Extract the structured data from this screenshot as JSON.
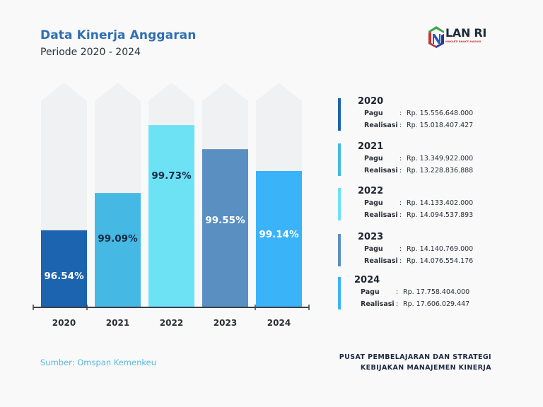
{
  "header": {
    "title": "Data Kinerja Anggaran",
    "subtitle": "Periode 2020 - 2024"
  },
  "logo": {
    "name": "LAN RI",
    "tagline": "MAKARTI BHAKTI NAGARI"
  },
  "chart_data": {
    "type": "bar",
    "title": "Data Kinerja Anggaran",
    "subtitle": "Periode 2020 - 2024",
    "xlabel": "",
    "ylabel": "",
    "grid": false,
    "categories": [
      "2020",
      "2021",
      "2022",
      "2023",
      "2024"
    ],
    "values": [
      96.54,
      99.09,
      99.73,
      99.55,
      99.14
    ],
    "value_unit": "%",
    "data_labels": [
      "96.54%",
      "99.09%",
      "99.73%",
      "99.55%",
      "99.14%"
    ],
    "fill_fraction": [
      0.343,
      0.509,
      0.811,
      0.704,
      0.607
    ],
    "colors": [
      "#1c63b0",
      "#45b9e3",
      "#6de2f5",
      "#5a8fc2",
      "#3ab3f9"
    ],
    "label_colors": [
      "#ffffff",
      "#1b2a44",
      "#1b2a44",
      "#ffffff",
      "#ffffff"
    ],
    "background_color": "#f0f1f3",
    "axis_color": "#3a3f4a"
  },
  "legend": [
    {
      "year": "2020",
      "color": "#1c63b0",
      "pagu_label": "Pagu",
      "pagu": "Rp. 15.556.648.000",
      "realisasi_label": "Realisasi",
      "realisasi": "Rp. 15.018.407.427"
    },
    {
      "year": "2021",
      "color": "#45b9e3",
      "pagu_label": "Pagu",
      "pagu": "Rp. 13.349.922.000",
      "realisasi_label": "Realisasi",
      "realisasi": "Rp. 13.228.836.888"
    },
    {
      "year": "2022",
      "color": "#6de2f5",
      "pagu_label": "Pagu",
      "pagu": "Rp. 14.133.402.000",
      "realisasi_label": "Realisasi",
      "realisasi": "Rp. 14.094.537.893"
    },
    {
      "year": "2023",
      "color": "#5a8fc2",
      "pagu_label": "Pagu",
      "pagu": "Rp. 14.140.769.000",
      "realisasi_label": "Realisasi",
      "realisasi": "Rp. 14.076.554.176"
    },
    {
      "year": "2024",
      "color": "#3ab3f9",
      "pagu_label": "Pagu",
      "pagu": "Rp. 17.758.404.000",
      "realisasi_label": "Realisasi",
      "realisasi": "Rp. 17.606.029.447"
    }
  ],
  "separator": ":",
  "footer": {
    "source": "Sumber: Omspan Kemenkeu",
    "org_line1": "PUSAT PEMBELAJARAN DAN STRATEGI",
    "org_line2": "KEBIJAKAN MANAJEMEN KINERJA"
  }
}
